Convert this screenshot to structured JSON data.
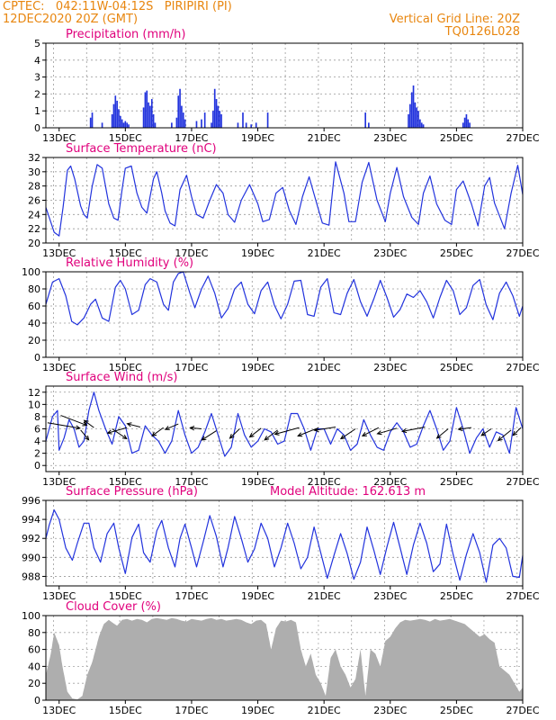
{
  "header": {
    "line1_left": "CPTEC:   042:11W-04:12S   PIRIPIRI (PI)",
    "line2_left": "12DEC2020 20Z (GMT)",
    "line1_right": "Vertical Grid Line: 20Z",
    "line2_right": "TQ0126L028"
  },
  "colors": {
    "title": "#e0007c",
    "header": "#e8860f",
    "series": "#2233dd",
    "cloud": "#a6a6a6"
  },
  "x_tick_labels": [
    "13DEC",
    "15DEC",
    "17DEC",
    "19DEC",
    "21DEC",
    "23DEC",
    "25DEC",
    "27DEC"
  ],
  "chart_data": [
    {
      "type": "bar",
      "title": "Precipitation (mm/h)",
      "ylim": [
        0,
        5
      ],
      "yticks": [
        "0",
        "1",
        "2",
        "3",
        "4",
        "5"
      ],
      "x_range_days": [
        12.6,
        27.0
      ],
      "bars": [
        [
          13.95,
          0.6
        ],
        [
          14.0,
          0.9
        ],
        [
          14.3,
          0.3
        ],
        [
          14.6,
          0.8
        ],
        [
          14.65,
          1.4
        ],
        [
          14.7,
          1.9
        ],
        [
          14.75,
          1.6
        ],
        [
          14.8,
          1.1
        ],
        [
          14.85,
          0.7
        ],
        [
          14.9,
          0.5
        ],
        [
          14.95,
          0.3
        ],
        [
          15.0,
          0.4
        ],
        [
          15.05,
          0.3
        ],
        [
          15.1,
          0.2
        ],
        [
          15.55,
          1.2
        ],
        [
          15.6,
          2.1
        ],
        [
          15.65,
          2.2
        ],
        [
          15.7,
          1.5
        ],
        [
          15.75,
          1.3
        ],
        [
          15.8,
          1.7
        ],
        [
          15.85,
          0.8
        ],
        [
          15.9,
          0.3
        ],
        [
          16.4,
          0.3
        ],
        [
          16.55,
          0.6
        ],
        [
          16.6,
          1.9
        ],
        [
          16.65,
          2.3
        ],
        [
          16.7,
          1.3
        ],
        [
          16.75,
          0.9
        ],
        [
          16.8,
          0.5
        ],
        [
          17.15,
          0.4
        ],
        [
          17.3,
          0.5
        ],
        [
          17.4,
          0.9
        ],
        [
          17.6,
          0.3
        ],
        [
          17.65,
          1.0
        ],
        [
          17.7,
          2.3
        ],
        [
          17.75,
          1.7
        ],
        [
          17.8,
          1.3
        ],
        [
          17.85,
          1.0
        ],
        [
          17.9,
          0.8
        ],
        [
          18.4,
          0.3
        ],
        [
          18.55,
          0.9
        ],
        [
          18.65,
          0.3
        ],
        [
          18.8,
          0.2
        ],
        [
          18.95,
          0.3
        ],
        [
          19.3,
          0.9
        ],
        [
          22.25,
          0.9
        ],
        [
          22.35,
          0.3
        ],
        [
          23.55,
          0.8
        ],
        [
          23.6,
          1.4
        ],
        [
          23.65,
          2.1
        ],
        [
          23.7,
          2.5
        ],
        [
          23.75,
          1.5
        ],
        [
          23.8,
          1.2
        ],
        [
          23.85,
          1.0
        ],
        [
          23.9,
          0.5
        ],
        [
          23.95,
          0.3
        ],
        [
          24.0,
          0.2
        ],
        [
          25.2,
          0.3
        ],
        [
          25.25,
          0.6
        ],
        [
          25.3,
          0.8
        ],
        [
          25.35,
          0.5
        ],
        [
          25.4,
          0.3
        ]
      ]
    },
    {
      "type": "line",
      "title": "Surface Temperature (nC)",
      "ylim": [
        20,
        32
      ],
      "yticks": [
        "20",
        "22",
        "24",
        "26",
        "28",
        "30",
        "32"
      ],
      "x": [
        12.6,
        12.78,
        12.85,
        13.0,
        13.12,
        13.25,
        13.35,
        13.47,
        13.65,
        13.75,
        13.85,
        14.0,
        14.15,
        14.3,
        14.5,
        14.65,
        14.78,
        14.9,
        15.0,
        15.18,
        15.35,
        15.5,
        15.65,
        15.85,
        15.95,
        16.1,
        16.2,
        16.35,
        16.5,
        16.65,
        16.85,
        17.0,
        17.15,
        17.35,
        17.55,
        17.75,
        17.95,
        18.1,
        18.3,
        18.5,
        18.75,
        19.0,
        19.15,
        19.35,
        19.55,
        19.75,
        19.95,
        20.15,
        20.35,
        20.55,
        20.75,
        20.95,
        21.15,
        21.35,
        21.6,
        21.75,
        21.95,
        22.15,
        22.35,
        22.6,
        22.85,
        23.0,
        23.2,
        23.4,
        23.65,
        23.85,
        24.0,
        24.2,
        24.4,
        24.65,
        24.85,
        25.0,
        25.2,
        25.45,
        25.65,
        25.85,
        26.0,
        26.15,
        26.45,
        26.65,
        26.85,
        27.0
      ],
      "y": [
        25.0,
        22.5,
        21.5,
        21.0,
        25.0,
        30.2,
        30.8,
        29.0,
        25.2,
        24.0,
        23.5,
        28.0,
        31.0,
        30.5,
        25.5,
        23.5,
        23.2,
        27.5,
        30.5,
        30.8,
        27.0,
        25.0,
        24.2,
        29.0,
        30.0,
        27.0,
        24.5,
        22.8,
        22.4,
        27.5,
        29.5,
        26.5,
        24.0,
        23.5,
        26.0,
        28.2,
        27.0,
        24.0,
        22.9,
        26.0,
        28.2,
        25.5,
        23.0,
        23.3,
        27.0,
        27.8,
        24.6,
        22.6,
        26.5,
        29.3,
        26.0,
        22.8,
        22.5,
        31.4,
        27.0,
        23.0,
        23.0,
        28.5,
        31.3,
        26.0,
        23.0,
        27.0,
        30.6,
        26.5,
        23.6,
        22.6,
        27.0,
        29.4,
        25.5,
        23.2,
        22.6,
        27.5,
        28.7,
        25.5,
        22.4,
        28.0,
        29.2,
        25.6,
        22.0,
        27.0,
        30.9,
        26.8
      ]
    },
    {
      "type": "line",
      "title": "Relative Humidity (%)",
      "ylim": [
        0,
        100
      ],
      "yticks": [
        "0",
        "20",
        "40",
        "60",
        "80",
        "100"
      ],
      "x": [
        12.6,
        12.8,
        13.0,
        13.2,
        13.38,
        13.55,
        13.75,
        13.95,
        14.1,
        14.3,
        14.5,
        14.7,
        14.85,
        15.0,
        15.2,
        15.4,
        15.6,
        15.75,
        15.95,
        16.15,
        16.3,
        16.45,
        16.6,
        16.75,
        16.95,
        17.1,
        17.3,
        17.5,
        17.7,
        17.9,
        18.1,
        18.3,
        18.5,
        18.7,
        18.9,
        19.1,
        19.3,
        19.5,
        19.7,
        19.9,
        20.1,
        20.3,
        20.5,
        20.7,
        20.9,
        21.1,
        21.3,
        21.5,
        21.7,
        21.9,
        22.1,
        22.3,
        22.5,
        22.7,
        22.9,
        23.1,
        23.3,
        23.5,
        23.7,
        23.9,
        24.1,
        24.3,
        24.5,
        24.7,
        24.9,
        25.1,
        25.3,
        25.5,
        25.7,
        25.9,
        26.1,
        26.3,
        26.5,
        26.7,
        26.9,
        27.0
      ],
      "y": [
        62,
        88,
        92,
        72,
        42,
        38,
        46,
        62,
        68,
        46,
        42,
        82,
        90,
        80,
        50,
        55,
        85,
        92,
        88,
        62,
        55,
        88,
        98,
        100,
        75,
        58,
        80,
        95,
        75,
        46,
        57,
        80,
        88,
        62,
        51,
        78,
        88,
        61,
        45,
        62,
        89,
        90,
        50,
        48,
        82,
        92,
        52,
        50,
        75,
        91,
        65,
        48,
        68,
        90,
        70,
        47,
        56,
        74,
        70,
        78,
        65,
        46,
        70,
        90,
        78,
        50,
        58,
        84,
        91,
        61,
        44,
        75,
        88,
        72,
        48,
        60
      ]
    },
    {
      "type": "line",
      "title": "Surface Wind (m/s)",
      "ylim": [
        -1,
        13
      ],
      "yticks": [
        "0",
        "2",
        "4",
        "6",
        "8",
        "10",
        "12"
      ],
      "x": [
        12.6,
        12.8,
        12.95,
        13.0,
        13.15,
        13.3,
        13.45,
        13.6,
        13.75,
        13.9,
        14.05,
        14.2,
        14.4,
        14.6,
        14.8,
        15.0,
        15.2,
        15.4,
        15.6,
        15.8,
        16.0,
        16.2,
        16.4,
        16.6,
        16.8,
        17.0,
        17.2,
        17.4,
        17.6,
        17.8,
        18.0,
        18.2,
        18.4,
        18.6,
        18.8,
        19.0,
        19.2,
        19.4,
        19.6,
        19.8,
        20.0,
        20.2,
        20.4,
        20.6,
        20.8,
        21.0,
        21.2,
        21.4,
        21.6,
        21.8,
        22.0,
        22.2,
        22.4,
        22.6,
        22.8,
        23.0,
        23.2,
        23.4,
        23.6,
        23.8,
        24.0,
        24.2,
        24.4,
        24.6,
        24.8,
        25.0,
        25.2,
        25.4,
        25.6,
        25.8,
        26.0,
        26.2,
        26.4,
        26.6,
        26.8,
        27.0
      ],
      "y": [
        4.0,
        8.0,
        9.0,
        2.5,
        4.5,
        7.5,
        6.0,
        3.0,
        4.0,
        9.0,
        12.0,
        9.0,
        6.0,
        3.5,
        8.0,
        6.5,
        2.0,
        2.5,
        6.5,
        5.0,
        4.0,
        2.0,
        4.0,
        9.0,
        5.0,
        2.0,
        3.0,
        5.5,
        8.5,
        5.0,
        1.5,
        3.0,
        8.5,
        5.0,
        3.0,
        4.0,
        6.0,
        5.5,
        3.5,
        4.0,
        8.5,
        8.5,
        6.0,
        2.5,
        6.0,
        6.0,
        3.5,
        6.0,
        5.0,
        2.5,
        3.5,
        7.5,
        5.0,
        3.0,
        2.5,
        5.5,
        7.0,
        5.5,
        3.0,
        3.5,
        6.5,
        9.0,
        6.0,
        2.5,
        4.0,
        9.5,
        6.0,
        2.0,
        4.5,
        6.0,
        3.0,
        5.5,
        5.0,
        2.0,
        9.5,
        6.0
      ],
      "arrows": [
        {
          "x": 12.65,
          "y": 7.0,
          "dx": 2.0,
          "dy": -1.0
        },
        {
          "x": 13.05,
          "y": 8.2,
          "dx": 1.6,
          "dy": -1.8
        },
        {
          "x": 13.65,
          "y": 5.8,
          "dx": 0.5,
          "dy": -1.8
        },
        {
          "x": 14.05,
          "y": 6.2,
          "dx": -0.6,
          "dy": 1.3
        },
        {
          "x": 14.6,
          "y": 6.0,
          "dx": 0.9,
          "dy": -1.8
        },
        {
          "x": 15.05,
          "y": 6.2,
          "dx": -1.2,
          "dy": -1.0
        },
        {
          "x": 15.45,
          "y": 6.3,
          "dx": -0.8,
          "dy": 0.6
        },
        {
          "x": 16.15,
          "y": 6.2,
          "dx": -0.7,
          "dy": -1.5
        },
        {
          "x": 16.6,
          "y": 6.8,
          "dx": -0.8,
          "dy": -1.0
        },
        {
          "x": 17.3,
          "y": 6.0,
          "dx": -0.7,
          "dy": 0.2
        },
        {
          "x": 17.75,
          "y": 5.7,
          "dx": -0.9,
          "dy": -1.7
        },
        {
          "x": 18.45,
          "y": 6.0,
          "dx": -0.6,
          "dy": -1.7
        },
        {
          "x": 19.1,
          "y": 6.1,
          "dx": -0.7,
          "dy": -1.6
        },
        {
          "x": 19.6,
          "y": 5.8,
          "dx": -0.8,
          "dy": -1.8
        },
        {
          "x": 20.25,
          "y": 6.2,
          "dx": -1.5,
          "dy": -1.2
        },
        {
          "x": 20.8,
          "y": 6.1,
          "dx": -1.2,
          "dy": -1.4
        },
        {
          "x": 21.35,
          "y": 6.3,
          "dx": -1.3,
          "dy": -0.6
        },
        {
          "x": 21.95,
          "y": 6.0,
          "dx": -0.9,
          "dy": -1.8
        },
        {
          "x": 22.65,
          "y": 6.2,
          "dx": -1.0,
          "dy": -1.5
        },
        {
          "x": 23.2,
          "y": 6.1,
          "dx": -1.2,
          "dy": -1.0
        },
        {
          "x": 24.05,
          "y": 6.3,
          "dx": -1.4,
          "dy": -0.8
        },
        {
          "x": 24.75,
          "y": 6.0,
          "dx": -0.7,
          "dy": -1.7
        },
        {
          "x": 25.45,
          "y": 6.2,
          "dx": -0.8,
          "dy": -0.3
        },
        {
          "x": 26.05,
          "y": 6.0,
          "dx": -0.6,
          "dy": -1.2
        },
        {
          "x": 26.65,
          "y": 5.8,
          "dx": -0.8,
          "dy": -1.9
        },
        {
          "x": 26.95,
          "y": 6.2,
          "dx": -0.5,
          "dy": -1.4
        }
      ]
    },
    {
      "type": "line",
      "title": "Surface Pressure (hPa)",
      "annotation": "Model Altitude: 162.613 m",
      "ylim": [
        987,
        996
      ],
      "yticks": [
        "988",
        "990",
        "992",
        "994",
        "996"
      ],
      "x": [
        12.6,
        12.7,
        12.85,
        13.0,
        13.2,
        13.4,
        13.55,
        13.75,
        13.9,
        14.05,
        14.25,
        14.45,
        14.65,
        14.8,
        15.0,
        15.2,
        15.4,
        15.55,
        15.75,
        15.95,
        16.1,
        16.3,
        16.5,
        16.65,
        16.8,
        17.0,
        17.15,
        17.35,
        17.55,
        17.75,
        17.95,
        18.1,
        18.3,
        18.5,
        18.7,
        18.9,
        19.1,
        19.3,
        19.5,
        19.7,
        19.9,
        20.1,
        20.3,
        20.5,
        20.7,
        20.9,
        21.1,
        21.3,
        21.5,
        21.7,
        21.9,
        22.1,
        22.3,
        22.5,
        22.7,
        22.9,
        23.1,
        23.3,
        23.5,
        23.7,
        23.9,
        24.1,
        24.3,
        24.5,
        24.7,
        24.9,
        25.1,
        25.3,
        25.5,
        25.7,
        25.9,
        26.1,
        26.3,
        26.5,
        26.7,
        26.9,
        27.0
      ],
      "y": [
        992.0,
        993.4,
        995.0,
        994.0,
        991.0,
        989.7,
        991.5,
        993.6,
        993.6,
        991.0,
        989.5,
        992.5,
        993.6,
        991.0,
        988.3,
        992.1,
        993.5,
        990.5,
        989.5,
        992.8,
        993.9,
        991.0,
        989.0,
        992.0,
        993.5,
        991.0,
        989.0,
        991.6,
        994.4,
        992.2,
        989.0,
        991.0,
        994.3,
        992.0,
        989.5,
        990.9,
        993.6,
        992.0,
        989.0,
        991.0,
        993.6,
        991.5,
        988.8,
        990.0,
        993.2,
        990.5,
        987.8,
        990.2,
        992.5,
        990.4,
        987.7,
        989.5,
        993.2,
        990.8,
        988.2,
        991.1,
        993.7,
        991.0,
        988.2,
        991.3,
        993.6,
        991.5,
        988.5,
        989.3,
        993.5,
        990.3,
        987.6,
        990.3,
        992.5,
        990.5,
        987.4,
        991.3,
        992.0,
        991.0,
        988.0,
        987.9,
        990.2
      ]
    },
    {
      "type": "area",
      "title": "Cloud Cover (%)",
      "ylim": [
        0,
        100
      ],
      "yticks": [
        "0",
        "20",
        "40",
        "60",
        "80",
        "100"
      ],
      "x": [
        12.6,
        12.75,
        12.85,
        13.0,
        13.1,
        13.25,
        13.4,
        13.55,
        13.7,
        13.85,
        14.0,
        14.1,
        14.2,
        14.35,
        14.5,
        14.6,
        14.75,
        14.9,
        15.05,
        15.2,
        15.35,
        15.5,
        15.65,
        15.8,
        15.95,
        16.1,
        16.25,
        16.4,
        16.55,
        16.7,
        16.85,
        17.0,
        17.15,
        17.3,
        17.45,
        17.6,
        17.75,
        17.9,
        18.05,
        18.2,
        18.35,
        18.5,
        18.65,
        18.8,
        18.95,
        19.1,
        19.25,
        19.4,
        19.55,
        19.7,
        19.85,
        20.0,
        20.15,
        20.3,
        20.45,
        20.6,
        20.75,
        20.9,
        21.05,
        21.2,
        21.35,
        21.5,
        21.65,
        21.8,
        21.95,
        22.1,
        22.25,
        22.4,
        22.55,
        22.7,
        22.85,
        23.0,
        23.15,
        23.3,
        23.45,
        23.6,
        23.75,
        23.9,
        24.05,
        24.2,
        24.35,
        24.5,
        24.65,
        24.8,
        24.95,
        25.1,
        25.25,
        25.4,
        25.55,
        25.7,
        25.85,
        26.0,
        26.15,
        26.3,
        26.45,
        26.6,
        26.75,
        26.9,
        27.0
      ],
      "y": [
        30,
        55,
        80,
        65,
        40,
        10,
        2,
        1,
        5,
        30,
        45,
        60,
        75,
        90,
        95,
        92,
        88,
        95,
        96,
        94,
        96,
        95,
        92,
        96,
        97,
        96,
        95,
        97,
        96,
        94,
        93,
        96,
        95,
        94,
        96,
        97,
        95,
        96,
        94,
        95,
        96,
        95,
        92,
        90,
        94,
        95,
        90,
        60,
        85,
        94,
        93,
        95,
        92,
        60,
        40,
        55,
        30,
        20,
        5,
        50,
        60,
        40,
        30,
        15,
        25,
        60,
        5,
        60,
        55,
        40,
        70,
        75,
        85,
        92,
        95,
        94,
        95,
        96,
        95,
        93,
        96,
        94,
        95,
        96,
        94,
        92,
        90,
        85,
        80,
        75,
        78,
        72,
        68,
        40,
        35,
        30,
        20,
        10,
        15
      ]
    }
  ]
}
